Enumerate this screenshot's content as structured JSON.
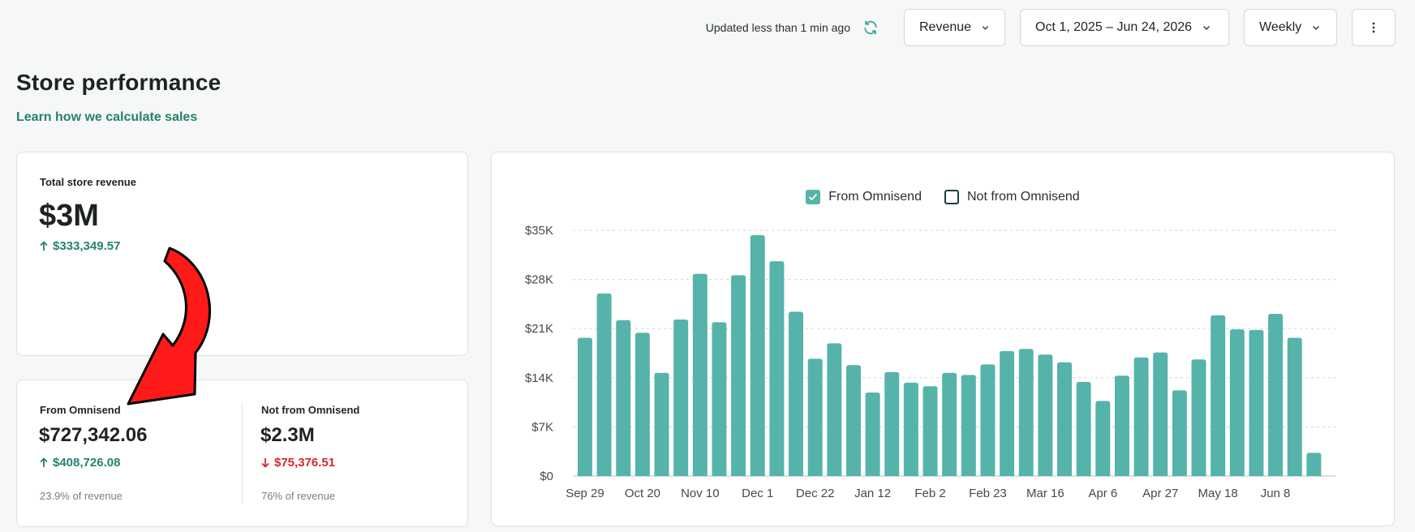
{
  "header": {
    "updated_text": "Updated less than 1 min ago",
    "metric_select": "Revenue",
    "date_range": "Oct 1, 2025 – Jun 24, 2026",
    "granularity": "Weekly"
  },
  "page": {
    "title": "Store performance",
    "learn_link": "Learn how we calculate sales"
  },
  "total": {
    "label": "Total store revenue",
    "value": "$3M",
    "delta": "$333,349.57",
    "delta_direction": "up"
  },
  "from_omnisend": {
    "label": "From Omnisend",
    "value": "$727,342.06",
    "delta": "$408,726.08",
    "delta_direction": "up",
    "share": "23.9% of revenue"
  },
  "not_from_omnisend": {
    "label": "Not from Omnisend",
    "value": "$2.3M",
    "delta": "$75,376.51",
    "delta_direction": "down",
    "share": "76% of revenue"
  },
  "colors": {
    "accent": "#24826f",
    "bar": "#55b3aa",
    "negative": "#d4262f",
    "arrow": "#ff1a1a"
  },
  "chart_data": {
    "type": "bar",
    "legend": [
      {
        "name": "From Omnisend",
        "checked": true
      },
      {
        "name": "Not from Omnisend",
        "checked": false
      }
    ],
    "x_tick_labels": [
      "Sep 29",
      "Oct 20",
      "Nov 10",
      "Dec 1",
      "Dec 22",
      "Jan 12",
      "Feb 2",
      "Feb 23",
      "Mar 16",
      "Apr 6",
      "Apr 27",
      "May 18",
      "Jun 8"
    ],
    "y_tick_labels": [
      "$0",
      "$7K",
      "$14K",
      "$21K",
      "$28K",
      "$35K"
    ],
    "ylim": [
      0,
      35000
    ],
    "grid": true,
    "series": [
      {
        "name": "From Omnisend",
        "values": [
          19700,
          26000,
          22200,
          20400,
          14700,
          22300,
          28800,
          21900,
          28600,
          34300,
          30600,
          23400,
          16700,
          18900,
          15800,
          11900,
          14800,
          13300,
          12800,
          14700,
          14400,
          15900,
          17800,
          18100,
          17300,
          16200,
          13400,
          10700,
          14300,
          16900,
          17600,
          12200,
          16600,
          22900,
          20900,
          20800,
          23100,
          19700,
          3300
        ]
      }
    ]
  }
}
